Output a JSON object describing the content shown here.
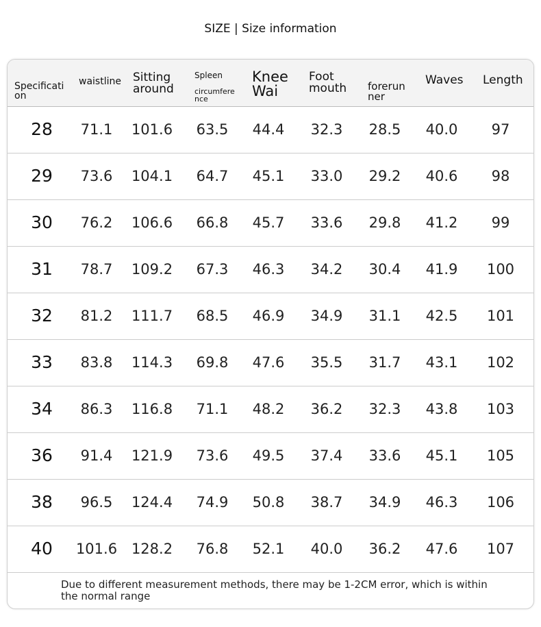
{
  "title": "SIZE | Size information",
  "headers": [
    "Specificati on",
    "waistline",
    "Sitting around",
    "Spleen",
    "circumfere nce",
    "Knee Wai",
    "Foot mouth",
    "forerun ner",
    "Waves",
    "Length"
  ],
  "rows": [
    [
      "28",
      "71.1",
      "101.6",
      "63.5",
      "44.4",
      "32.3",
      "28.5",
      "40.0",
      "97"
    ],
    [
      "29",
      "73.6",
      "104.1",
      "64.7",
      "45.1",
      "33.0",
      "29.2",
      "40.6",
      "98"
    ],
    [
      "30",
      "76.2",
      "106.6",
      "66.8",
      "45.7",
      "33.6",
      "29.8",
      "41.2",
      "99"
    ],
    [
      "31",
      "78.7",
      "109.2",
      "67.3",
      "46.3",
      "34.2",
      "30.4",
      "41.9",
      "100"
    ],
    [
      "32",
      "81.2",
      "111.7",
      "68.5",
      "46.9",
      "34.9",
      "31.1",
      "42.5",
      "101"
    ],
    [
      "33",
      "83.8",
      "114.3",
      "69.8",
      "47.6",
      "35.5",
      "31.7",
      "43.1",
      "102"
    ],
    [
      "34",
      "86.3",
      "116.8",
      "71.1",
      "48.2",
      "36.2",
      "32.3",
      "43.8",
      "103"
    ],
    [
      "36",
      "91.4",
      "121.9",
      "73.6",
      "49.5",
      "37.4",
      "33.6",
      "45.1",
      "105"
    ],
    [
      "38",
      "96.5",
      "124.4",
      "74.9",
      "50.8",
      "38.7",
      "34.9",
      "46.3",
      "106"
    ],
    [
      "40",
      "101.6",
      "128.2",
      "76.8",
      "52.1",
      "40.0",
      "36.2",
      "47.6",
      "107"
    ]
  ],
  "note": "Due to different measurement methods, there may be 1-2CM error, which is within the normal range"
}
